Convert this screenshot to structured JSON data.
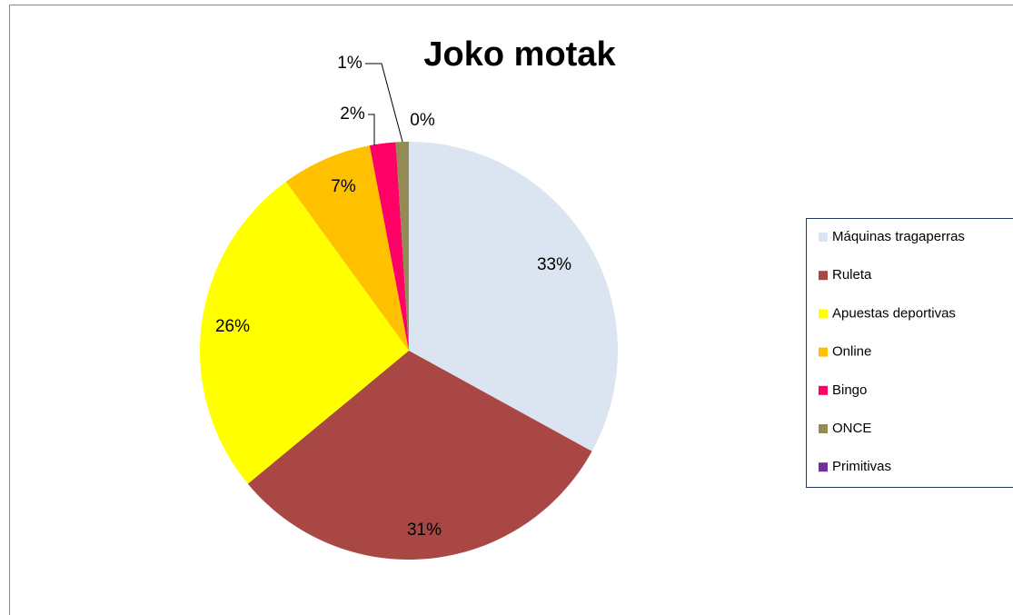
{
  "chart_data": {
    "type": "pie",
    "title": "Joko motak",
    "categories": [
      "Máquinas tragaperras",
      "Ruleta",
      "Apuestas deportivas",
      "Online",
      "Bingo",
      "ONCE",
      "Primitivas"
    ],
    "values": [
      33,
      31,
      26,
      7,
      2,
      1,
      0
    ],
    "value_labels": [
      "33%",
      "31%",
      "26%",
      "7%",
      "2%",
      "1%",
      "0%"
    ],
    "colors": [
      "#dbe5f1",
      "#a94744",
      "#ffff00",
      "#ffc000",
      "#ff0066",
      "#948a54",
      "#7030a0"
    ],
    "legend": "right"
  }
}
